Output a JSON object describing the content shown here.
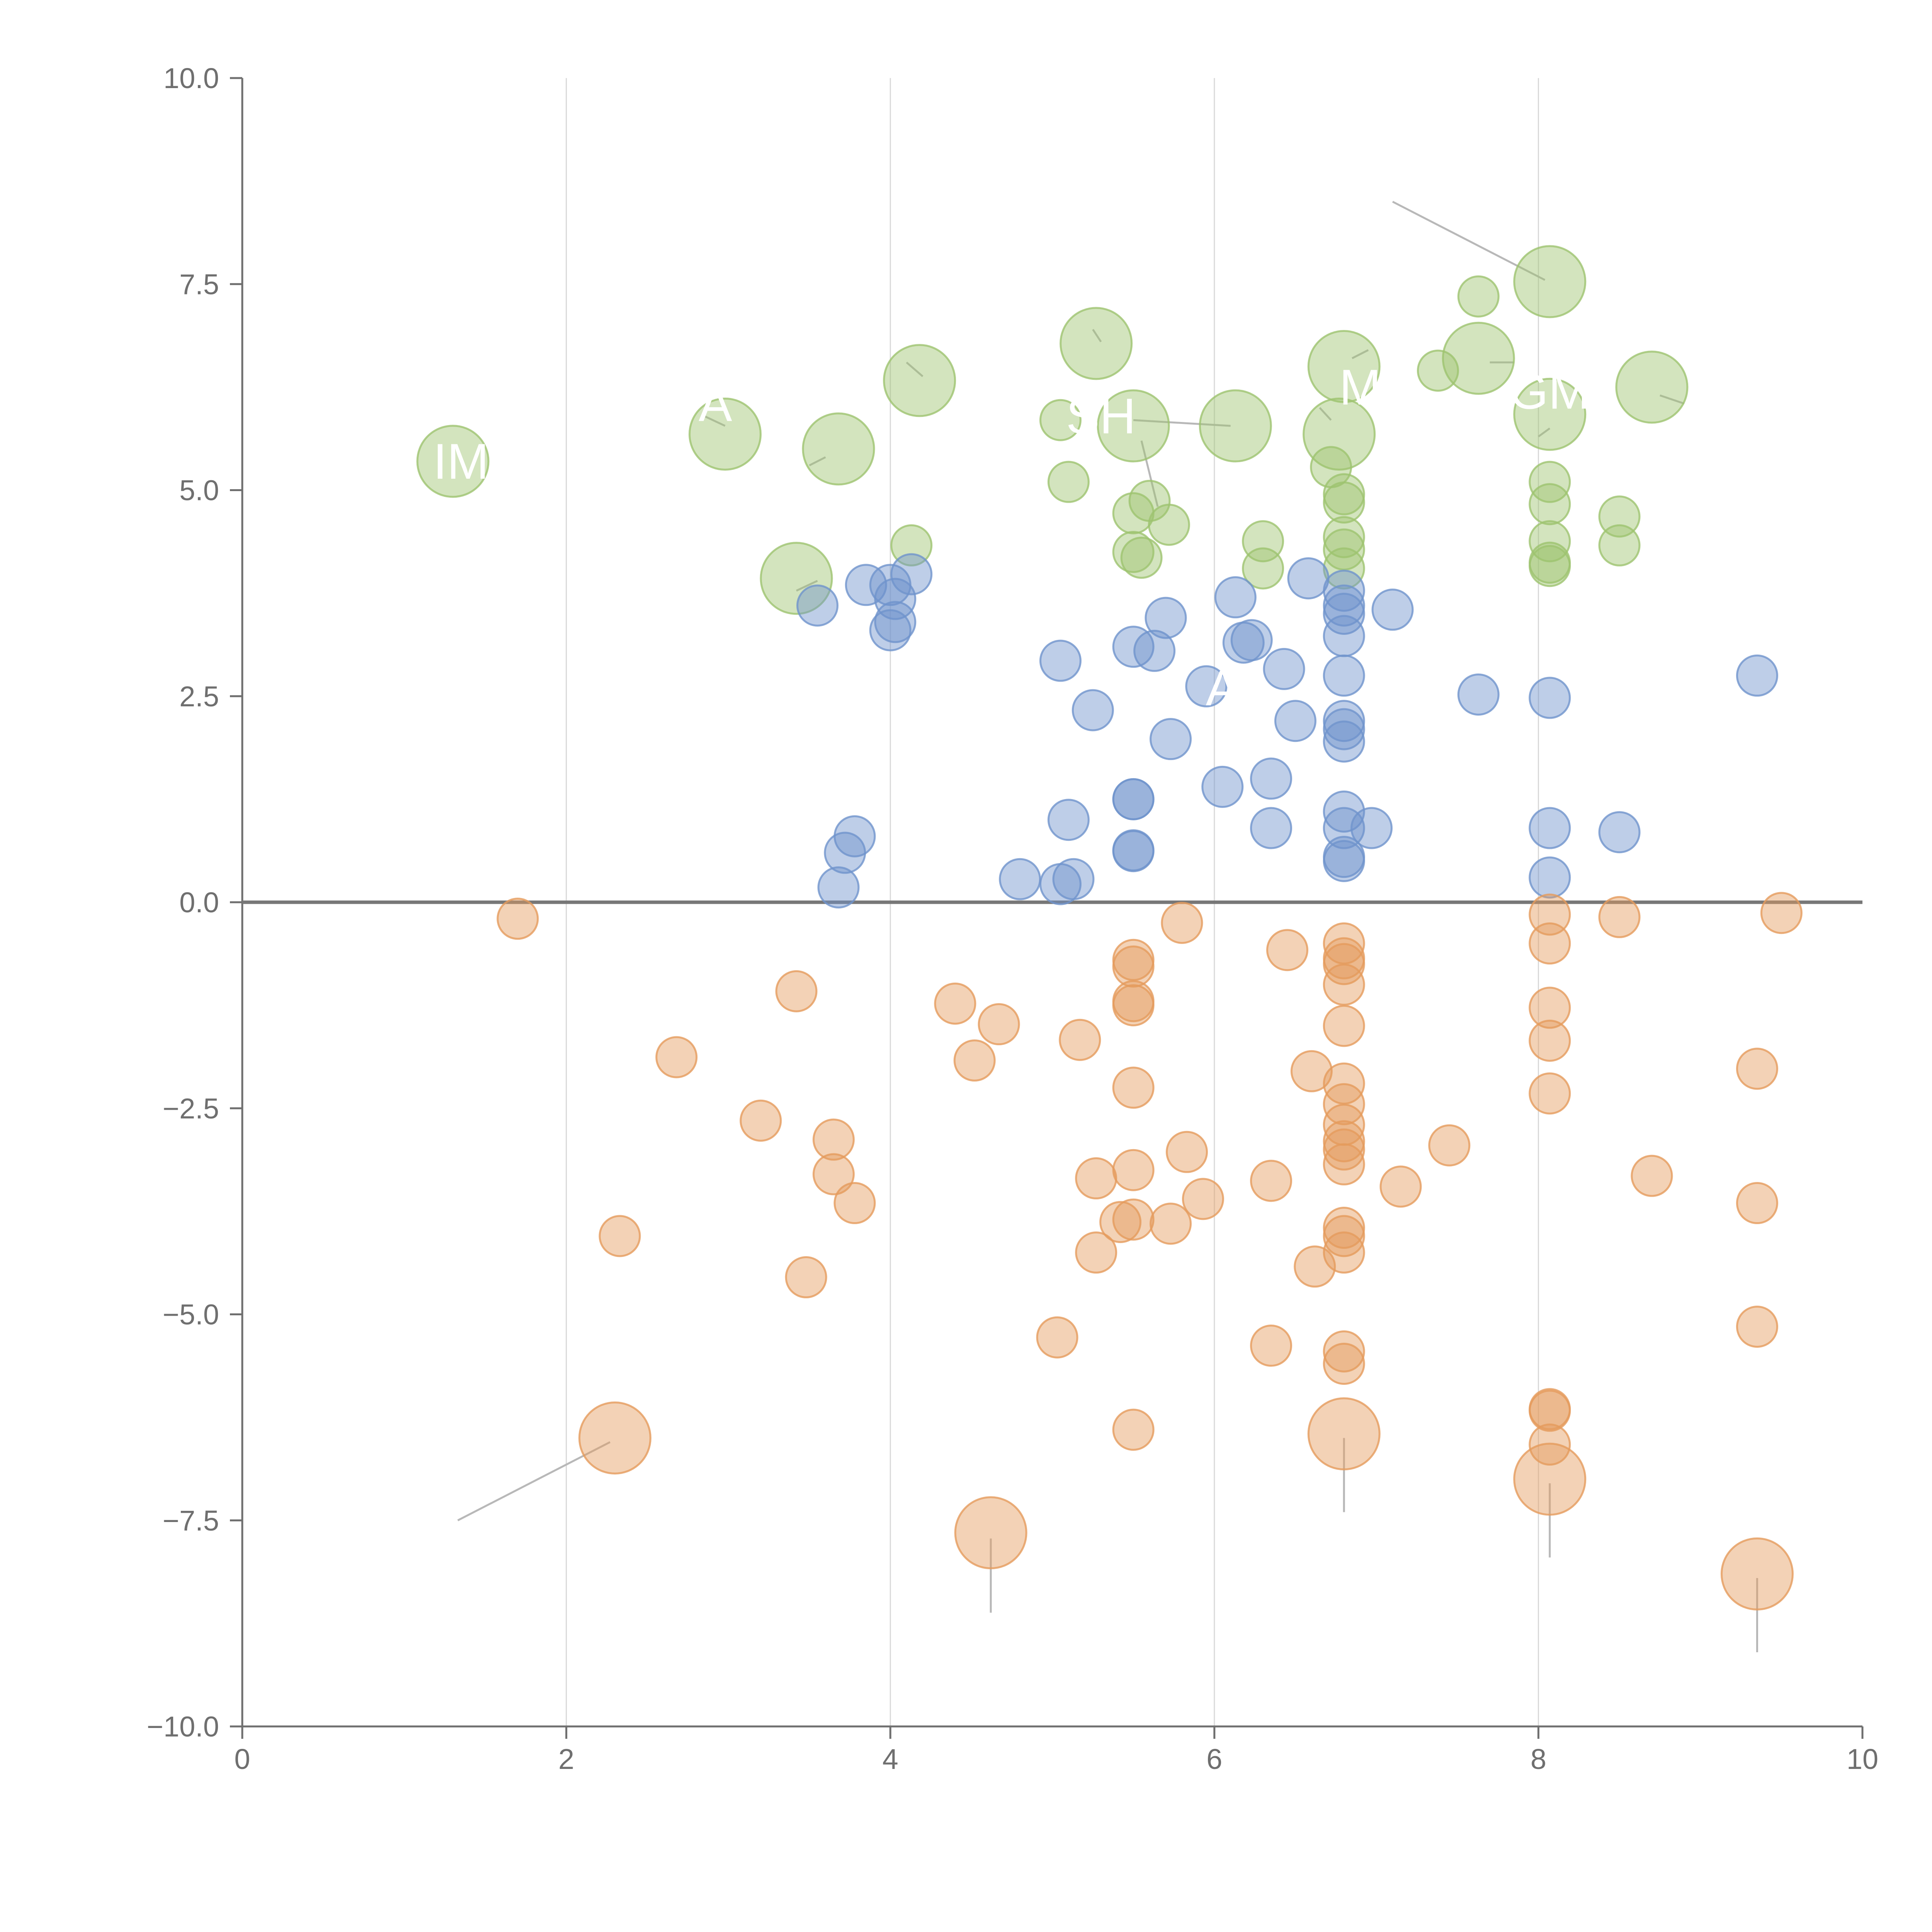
{
  "chart_data": {
    "type": "scatter",
    "title": "",
    "xlabel": "",
    "ylabel": "",
    "xlim": [
      0,
      10
    ],
    "ylim": [
      -10,
      10
    ],
    "grid": "vertical",
    "x_ticks": [
      0,
      2,
      4,
      6,
      8,
      10
    ],
    "x_tick_labels": [
      "0",
      "2",
      "4",
      "6",
      "8",
      "10"
    ],
    "y_ticks": [
      -10,
      -7.5,
      -5,
      -2.5,
      0,
      2.5,
      5,
      7.5,
      10
    ],
    "y_tick_labels": [
      "−10.0",
      "−7.5",
      "−5.0",
      "−2.5",
      "0.0",
      "2.5",
      "5.0",
      "7.5",
      "10.0"
    ],
    "colors": {
      "green": "#9dc36f",
      "blue": "#6f93cc",
      "orange": "#e59b5d",
      "axis": "#6f6f6f",
      "grid": "#d9d9d9",
      "zero_line": "#777777",
      "connector": "#b8b8b8"
    },
    "series": [
      {
        "name": "green",
        "color": "#9dc36f",
        "points": [
          [
            1.3,
            5.35,
            2
          ],
          [
            2.98,
            5.68,
            2
          ],
          [
            3.68,
            5.5,
            2
          ],
          [
            4.18,
            6.33,
            2
          ],
          [
            5.27,
            6.78,
            2
          ],
          [
            5.5,
            5.78,
            2
          ],
          [
            6.13,
            5.78,
            2
          ],
          [
            6.77,
            5.68,
            2
          ],
          [
            6.8,
            6.5,
            2
          ],
          [
            7.63,
            6.6,
            2
          ],
          [
            8.07,
            7.53,
            2
          ],
          [
            8.07,
            5.92,
            2
          ],
          [
            8.7,
            6.25,
            2
          ],
          [
            3.42,
            3.93,
            2
          ],
          [
            5.05,
            5.85,
            1
          ],
          [
            5.1,
            5.1,
            1
          ],
          [
            5.5,
            4.72,
            1
          ],
          [
            5.6,
            4.87,
            1
          ],
          [
            5.72,
            4.58,
            1
          ],
          [
            5.5,
            4.25,
            1
          ],
          [
            5.55,
            4.18,
            1
          ],
          [
            4.13,
            4.33,
            1
          ],
          [
            6.3,
            4.38,
            1
          ],
          [
            6.3,
            4.05,
            1
          ],
          [
            6.72,
            5.28,
            1
          ],
          [
            6.8,
            4.95,
            1
          ],
          [
            6.8,
            4.85,
            1
          ],
          [
            6.8,
            4.43,
            1
          ],
          [
            6.8,
            4.28,
            1
          ],
          [
            6.8,
            4.05,
            1
          ],
          [
            7.38,
            6.45,
            1
          ],
          [
            7.63,
            7.35,
            1
          ],
          [
            8.07,
            5.1,
            1
          ],
          [
            8.07,
            4.83,
            1
          ],
          [
            8.07,
            4.38,
            1
          ],
          [
            8.07,
            4.12,
            1
          ],
          [
            8.07,
            4.08,
            1
          ],
          [
            8.5,
            4.68,
            1
          ],
          [
            8.5,
            4.33,
            1
          ]
        ]
      },
      {
        "name": "blue",
        "color": "#6f93cc",
        "points": [
          [
            3.55,
            3.6,
            1
          ],
          [
            3.85,
            3.85,
            1
          ],
          [
            4.0,
            3.85,
            1
          ],
          [
            4.03,
            3.68,
            1
          ],
          [
            4.03,
            3.4,
            1
          ],
          [
            4.0,
            3.3,
            1
          ],
          [
            4.13,
            3.98,
            1
          ],
          [
            5.05,
            2.93,
            1
          ],
          [
            5.5,
            3.1,
            1
          ],
          [
            5.63,
            3.05,
            1
          ],
          [
            5.7,
            3.45,
            1
          ],
          [
            5.95,
            2.62,
            1
          ],
          [
            6.13,
            3.7,
            1
          ],
          [
            6.18,
            3.15,
            1
          ],
          [
            6.23,
            3.18,
            1
          ],
          [
            6.43,
            2.83,
            1
          ],
          [
            6.58,
            3.93,
            1
          ],
          [
            6.8,
            3.78,
            1
          ],
          [
            6.8,
            3.6,
            1
          ],
          [
            6.8,
            3.5,
            1
          ],
          [
            6.8,
            3.23,
            1
          ],
          [
            6.8,
            2.75,
            1
          ],
          [
            7.1,
            3.55,
            1
          ],
          [
            5.25,
            2.33,
            1
          ],
          [
            5.73,
            1.98,
            1
          ],
          [
            6.05,
            1.4,
            1
          ],
          [
            6.35,
            1.5,
            1
          ],
          [
            6.5,
            2.2,
            1
          ],
          [
            6.8,
            2.2,
            1
          ],
          [
            6.8,
            2.1,
            1
          ],
          [
            6.8,
            1.95,
            1
          ],
          [
            5.5,
            1.25,
            1
          ],
          [
            5.5,
            1.25,
            1
          ],
          [
            5.1,
            1.0,
            1
          ],
          [
            5.5,
            0.62,
            1
          ],
          [
            5.5,
            0.63,
            1
          ],
          [
            4.8,
            0.28,
            1
          ],
          [
            5.05,
            0.22,
            1
          ],
          [
            5.13,
            0.28,
            1
          ],
          [
            3.78,
            0.8,
            1
          ],
          [
            3.72,
            0.6,
            1
          ],
          [
            3.68,
            0.18,
            1
          ],
          [
            6.35,
            0.9,
            1
          ],
          [
            6.8,
            1.1,
            1
          ],
          [
            6.8,
            0.9,
            1
          ],
          [
            6.8,
            0.55,
            1
          ],
          [
            6.8,
            0.5,
            1
          ],
          [
            6.97,
            0.9,
            1
          ],
          [
            7.63,
            2.52,
            1
          ],
          [
            8.07,
            2.48,
            1
          ],
          [
            8.07,
            0.9,
            1
          ],
          [
            8.07,
            0.3,
            1
          ],
          [
            8.5,
            0.85,
            1
          ],
          [
            9.35,
            2.75,
            1
          ]
        ]
      },
      {
        "name": "orange",
        "color": "#e59b5d",
        "points": [
          [
            1.7,
            -0.2,
            1
          ],
          [
            3.42,
            -1.08,
            1
          ],
          [
            2.68,
            -1.88,
            1
          ],
          [
            3.2,
            -2.65,
            1
          ],
          [
            3.65,
            -2.88,
            1
          ],
          [
            3.65,
            -3.3,
            1
          ],
          [
            3.78,
            -3.65,
            1
          ],
          [
            2.33,
            -4.05,
            1
          ],
          [
            3.48,
            -4.55,
            1
          ],
          [
            4.4,
            -1.23,
            1
          ],
          [
            4.67,
            -1.48,
            1
          ],
          [
            4.52,
            -1.92,
            1
          ],
          [
            5.8,
            -0.25,
            1
          ],
          [
            5.5,
            -0.7,
            1
          ],
          [
            5.5,
            -0.78,
            1
          ],
          [
            5.5,
            -1.2,
            1
          ],
          [
            5.5,
            -1.25,
            1
          ],
          [
            5.17,
            -1.67,
            1
          ],
          [
            5.5,
            -2.25,
            1
          ],
          [
            5.83,
            -3.03,
            1
          ],
          [
            5.5,
            -3.25,
            1
          ],
          [
            5.27,
            -3.35,
            1
          ],
          [
            5.93,
            -3.6,
            1
          ],
          [
            5.42,
            -3.88,
            1
          ],
          [
            5.5,
            -3.85,
            1
          ],
          [
            5.73,
            -3.9,
            1
          ],
          [
            5.27,
            -4.25,
            1
          ],
          [
            5.03,
            -5.28,
            1
          ],
          [
            5.5,
            -6.4,
            1
          ],
          [
            6.45,
            -0.58,
            1
          ],
          [
            6.6,
            -2.05,
            1
          ],
          [
            6.8,
            -0.5,
            1
          ],
          [
            6.8,
            -0.68,
            1
          ],
          [
            6.8,
            -0.75,
            1
          ],
          [
            6.8,
            -1.0,
            1
          ],
          [
            6.8,
            -1.5,
            1
          ],
          [
            6.8,
            -2.2,
            1
          ],
          [
            6.8,
            -2.45,
            1
          ],
          [
            6.8,
            -2.7,
            1
          ],
          [
            6.8,
            -2.9,
            1
          ],
          [
            6.8,
            -3.0,
            1
          ],
          [
            6.8,
            -3.18,
            1
          ],
          [
            6.8,
            -3.95,
            1
          ],
          [
            6.8,
            -4.05,
            1
          ],
          [
            6.8,
            -4.25,
            1
          ],
          [
            6.62,
            -4.42,
            1
          ],
          [
            6.35,
            -3.38,
            1
          ],
          [
            6.35,
            -5.38,
            1
          ],
          [
            6.8,
            -5.45,
            1
          ],
          [
            6.8,
            -5.6,
            1
          ],
          [
            7.15,
            -3.45,
            1
          ],
          [
            7.45,
            -2.95,
            1
          ],
          [
            8.07,
            -0.15,
            1
          ],
          [
            8.07,
            -0.5,
            1
          ],
          [
            8.07,
            -1.28,
            1
          ],
          [
            8.07,
            -1.68,
            1
          ],
          [
            8.07,
            -2.32,
            1
          ],
          [
            8.07,
            -6.15,
            1
          ],
          [
            8.07,
            -6.17,
            1
          ],
          [
            8.07,
            -6.58,
            1
          ],
          [
            8.5,
            -0.18,
            1
          ],
          [
            8.7,
            -3.32,
            1
          ],
          [
            9.35,
            -2.02,
            1
          ],
          [
            9.35,
            -3.65,
            1
          ],
          [
            9.35,
            -5.15,
            1
          ],
          [
            9.5,
            -0.13,
            1
          ],
          [
            2.3,
            -6.5,
            2
          ],
          [
            4.62,
            -7.65,
            2
          ],
          [
            6.8,
            -6.45,
            2
          ],
          [
            8.07,
            -7.0,
            2
          ],
          [
            9.35,
            -8.15,
            2
          ]
        ]
      }
    ],
    "labels": [
      {
        "text": "IM",
        "x": 1.35,
        "y": 5.35
      },
      {
        "text": "A",
        "x": 2.92,
        "y": 6.05
      },
      {
        "text": "SH",
        "x": 5.3,
        "y": 5.9
      },
      {
        "text": "M",
        "x": 6.9,
        "y": 6.25
      },
      {
        "text": "GM",
        "x": 8.07,
        "y": 6.2
      },
      {
        "text": "A",
        "x": 6.05,
        "y": 2.6
      }
    ],
    "connectors": [
      [
        1.33,
        -7.5,
        2.27,
        -6.55
      ],
      [
        4.62,
        -7.72,
        4.62,
        -8.62
      ],
      [
        6.8,
        -6.5,
        6.8,
        -7.4
      ],
      [
        8.07,
        -7.05,
        8.07,
        -7.95
      ],
      [
        9.35,
        -8.2,
        9.35,
        -9.1
      ],
      [
        7.1,
        8.5,
        8.04,
        7.55
      ],
      [
        2.85,
        5.9,
        2.98,
        5.78
      ],
      [
        3.5,
        5.3,
        3.6,
        5.4
      ],
      [
        3.42,
        3.78,
        3.55,
        3.9
      ],
      [
        4.1,
        6.55,
        4.2,
        6.38
      ],
      [
        5.25,
        6.95,
        5.3,
        6.8
      ],
      [
        5.5,
        5.85,
        6.1,
        5.78
      ],
      [
        5.55,
        5.6,
        5.65,
        4.8
      ],
      [
        6.65,
        6.0,
        6.72,
        5.85
      ],
      [
        6.85,
        6.6,
        6.95,
        6.7
      ],
      [
        7.7,
        6.55,
        7.85,
        6.55
      ],
      [
        8.0,
        5.65,
        8.07,
        5.75
      ],
      [
        8.75,
        6.15,
        8.9,
        6.05
      ]
    ]
  }
}
